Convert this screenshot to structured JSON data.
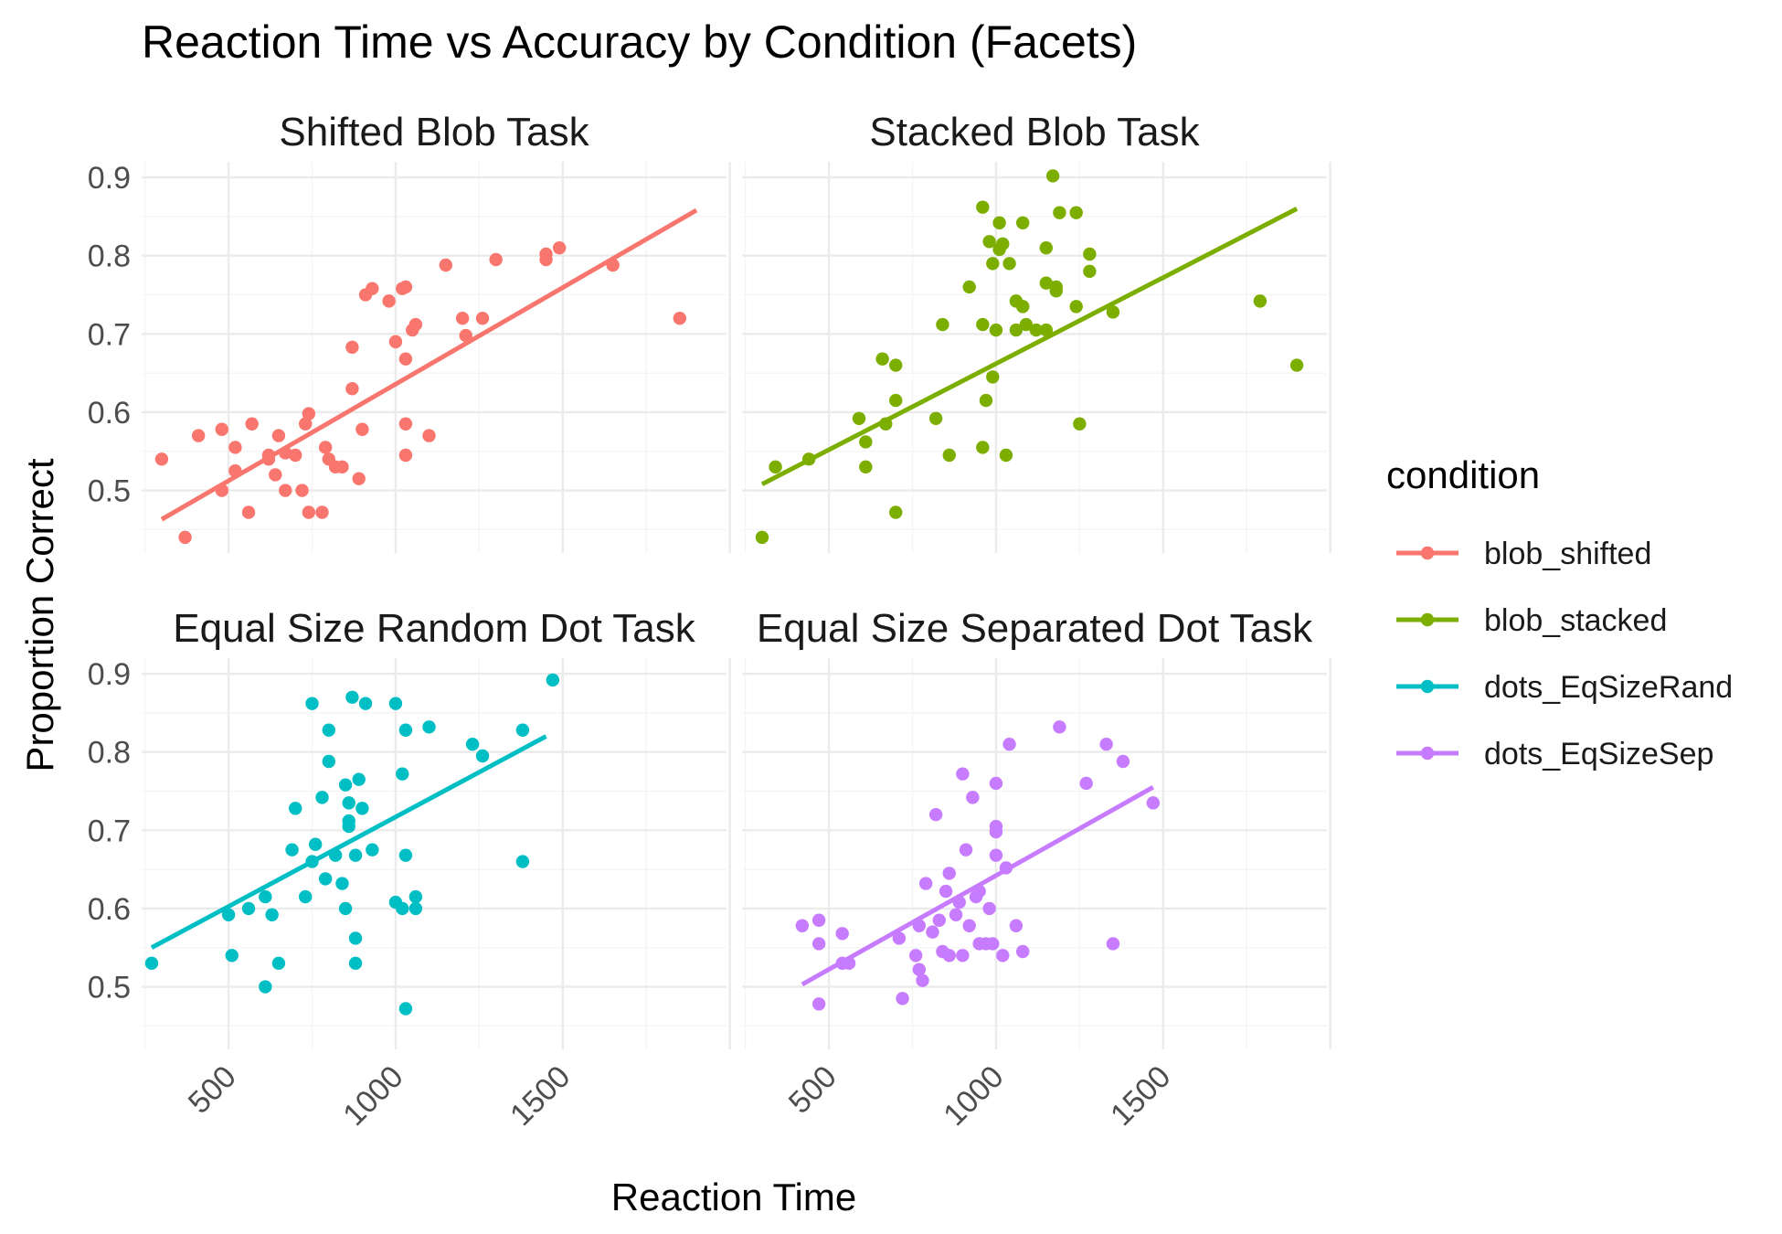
{
  "chart_data": {
    "type": "scatter",
    "title": "Reaction Time vs Accuracy by Condition (Facets)",
    "xlabel": "Reaction Time",
    "ylabel": "Proportion Correct",
    "xlim": [
      240,
      1990
    ],
    "ylim": [
      0.42,
      0.92
    ],
    "x_ticks": [
      500,
      1000,
      1500
    ],
    "y_ticks": [
      0.5,
      0.6,
      0.7,
      0.8,
      0.9
    ],
    "grid": true,
    "legend": {
      "title": "condition",
      "position": "right"
    },
    "facets": [
      {
        "strip": "Shifted Blob Task",
        "condition": "blob_shifted",
        "color": "#F8766D",
        "fit": {
          "x": [
            300,
            1900
          ],
          "y": [
            0.463,
            0.858
          ]
        },
        "points": [
          [
            300,
            0.54
          ],
          [
            370,
            0.44
          ],
          [
            410,
            0.57
          ],
          [
            480,
            0.578
          ],
          [
            480,
            0.5
          ],
          [
            520,
            0.555
          ],
          [
            520,
            0.525
          ],
          [
            560,
            0.472
          ],
          [
            570,
            0.585
          ],
          [
            620,
            0.54
          ],
          [
            620,
            0.545
          ],
          [
            640,
            0.52
          ],
          [
            650,
            0.57
          ],
          [
            670,
            0.548
          ],
          [
            670,
            0.5
          ],
          [
            700,
            0.545
          ],
          [
            720,
            0.5
          ],
          [
            730,
            0.585
          ],
          [
            740,
            0.598
          ],
          [
            740,
            0.472
          ],
          [
            780,
            0.472
          ],
          [
            800,
            0.54
          ],
          [
            790,
            0.555
          ],
          [
            820,
            0.53
          ],
          [
            840,
            0.53
          ],
          [
            870,
            0.683
          ],
          [
            870,
            0.63
          ],
          [
            890,
            0.515
          ],
          [
            900,
            0.578
          ],
          [
            910,
            0.75
          ],
          [
            930,
            0.758
          ],
          [
            980,
            0.742
          ],
          [
            1000,
            0.69
          ],
          [
            1020,
            0.758
          ],
          [
            1030,
            0.76
          ],
          [
            1030,
            0.668
          ],
          [
            1030,
            0.585
          ],
          [
            1030,
            0.545
          ],
          [
            1050,
            0.705
          ],
          [
            1060,
            0.712
          ],
          [
            1100,
            0.57
          ],
          [
            1150,
            0.788
          ],
          [
            1200,
            0.72
          ],
          [
            1210,
            0.698
          ],
          [
            1260,
            0.72
          ],
          [
            1300,
            0.795
          ],
          [
            1450,
            0.802
          ],
          [
            1450,
            0.795
          ],
          [
            1490,
            0.81
          ],
          [
            1650,
            0.788
          ],
          [
            1850,
            0.72
          ]
        ]
      },
      {
        "strip": "Stacked Blob Task",
        "condition": "blob_stacked",
        "color": "#7CAE00",
        "fit": {
          "x": [
            300,
            1900
          ],
          "y": [
            0.508,
            0.86
          ]
        },
        "points": [
          [
            300,
            0.44
          ],
          [
            340,
            0.53
          ],
          [
            440,
            0.54
          ],
          [
            590,
            0.592
          ],
          [
            610,
            0.53
          ],
          [
            610,
            0.562
          ],
          [
            660,
            0.668
          ],
          [
            670,
            0.585
          ],
          [
            700,
            0.66
          ],
          [
            700,
            0.472
          ],
          [
            700,
            0.615
          ],
          [
            820,
            0.592
          ],
          [
            840,
            0.712
          ],
          [
            860,
            0.545
          ],
          [
            920,
            0.76
          ],
          [
            960,
            0.862
          ],
          [
            960,
            0.712
          ],
          [
            960,
            0.555
          ],
          [
            970,
            0.615
          ],
          [
            980,
            0.818
          ],
          [
            990,
            0.79
          ],
          [
            990,
            0.645
          ],
          [
            1000,
            0.705
          ],
          [
            1010,
            0.842
          ],
          [
            1010,
            0.808
          ],
          [
            1020,
            0.815
          ],
          [
            1030,
            0.545
          ],
          [
            1040,
            0.79
          ],
          [
            1060,
            0.705
          ],
          [
            1060,
            0.742
          ],
          [
            1080,
            0.735
          ],
          [
            1080,
            0.842
          ],
          [
            1090,
            0.712
          ],
          [
            1120,
            0.705
          ],
          [
            1150,
            0.81
          ],
          [
            1150,
            0.765
          ],
          [
            1150,
            0.705
          ],
          [
            1180,
            0.76
          ],
          [
            1180,
            0.755
          ],
          [
            1170,
            0.902
          ],
          [
            1190,
            0.855
          ],
          [
            1240,
            0.855
          ],
          [
            1240,
            0.735
          ],
          [
            1250,
            0.585
          ],
          [
            1280,
            0.78
          ],
          [
            1280,
            0.802
          ],
          [
            1350,
            0.728
          ],
          [
            1790,
            0.742
          ],
          [
            1900,
            0.66
          ]
        ]
      },
      {
        "strip": "Equal Size Random Dot Task",
        "condition": "dots_EqSizeRand",
        "color": "#00BFC4",
        "fit": {
          "x": [
            270,
            1450
          ],
          "y": [
            0.55,
            0.82
          ]
        },
        "points": [
          [
            270,
            0.53
          ],
          [
            500,
            0.592
          ],
          [
            510,
            0.54
          ],
          [
            560,
            0.6
          ],
          [
            610,
            0.615
          ],
          [
            610,
            0.5
          ],
          [
            630,
            0.592
          ],
          [
            650,
            0.53
          ],
          [
            690,
            0.675
          ],
          [
            700,
            0.728
          ],
          [
            730,
            0.615
          ],
          [
            750,
            0.66
          ],
          [
            750,
            0.862
          ],
          [
            760,
            0.682
          ],
          [
            780,
            0.742
          ],
          [
            790,
            0.638
          ],
          [
            800,
            0.788
          ],
          [
            800,
            0.828
          ],
          [
            820,
            0.668
          ],
          [
            840,
            0.632
          ],
          [
            850,
            0.6
          ],
          [
            850,
            0.758
          ],
          [
            860,
            0.712
          ],
          [
            860,
            0.705
          ],
          [
            860,
            0.735
          ],
          [
            870,
            0.87
          ],
          [
            880,
            0.668
          ],
          [
            880,
            0.53
          ],
          [
            880,
            0.562
          ],
          [
            890,
            0.765
          ],
          [
            900,
            0.728
          ],
          [
            910,
            0.862
          ],
          [
            930,
            0.675
          ],
          [
            1000,
            0.862
          ],
          [
            1000,
            0.608
          ],
          [
            1020,
            0.772
          ],
          [
            1020,
            0.6
          ],
          [
            1030,
            0.828
          ],
          [
            1030,
            0.668
          ],
          [
            1030,
            0.472
          ],
          [
            1060,
            0.6
          ],
          [
            1060,
            0.615
          ],
          [
            1100,
            0.832
          ],
          [
            1230,
            0.81
          ],
          [
            1260,
            0.795
          ],
          [
            1380,
            0.66
          ],
          [
            1380,
            0.828
          ],
          [
            1470,
            0.892
          ]
        ]
      },
      {
        "strip": "Equal Size Separated Dot Task",
        "condition": "dots_EqSizeSep",
        "color": "#C77CFF",
        "fit": {
          "x": [
            420,
            1470
          ],
          "y": [
            0.503,
            0.755
          ]
        },
        "points": [
          [
            420,
            0.578
          ],
          [
            470,
            0.555
          ],
          [
            470,
            0.585
          ],
          [
            470,
            0.478
          ],
          [
            540,
            0.568
          ],
          [
            540,
            0.53
          ],
          [
            560,
            0.53
          ],
          [
            710,
            0.562
          ],
          [
            720,
            0.485
          ],
          [
            760,
            0.54
          ],
          [
            770,
            0.578
          ],
          [
            770,
            0.522
          ],
          [
            780,
            0.508
          ],
          [
            790,
            0.632
          ],
          [
            810,
            0.57
          ],
          [
            820,
            0.72
          ],
          [
            830,
            0.585
          ],
          [
            840,
            0.545
          ],
          [
            850,
            0.622
          ],
          [
            860,
            0.645
          ],
          [
            860,
            0.54
          ],
          [
            880,
            0.592
          ],
          [
            890,
            0.608
          ],
          [
            900,
            0.772
          ],
          [
            900,
            0.54
          ],
          [
            910,
            0.675
          ],
          [
            920,
            0.578
          ],
          [
            930,
            0.742
          ],
          [
            940,
            0.615
          ],
          [
            950,
            0.622
          ],
          [
            950,
            0.555
          ],
          [
            970,
            0.555
          ],
          [
            980,
            0.6
          ],
          [
            990,
            0.555
          ],
          [
            1000,
            0.698
          ],
          [
            1000,
            0.705
          ],
          [
            1000,
            0.668
          ],
          [
            1000,
            0.76
          ],
          [
            1020,
            0.54
          ],
          [
            1030,
            0.652
          ],
          [
            1040,
            0.81
          ],
          [
            1060,
            0.578
          ],
          [
            1080,
            0.545
          ],
          [
            1190,
            0.832
          ],
          [
            1270,
            0.76
          ],
          [
            1330,
            0.81
          ],
          [
            1350,
            0.555
          ],
          [
            1380,
            0.788
          ],
          [
            1470,
            0.735
          ]
        ]
      }
    ]
  }
}
